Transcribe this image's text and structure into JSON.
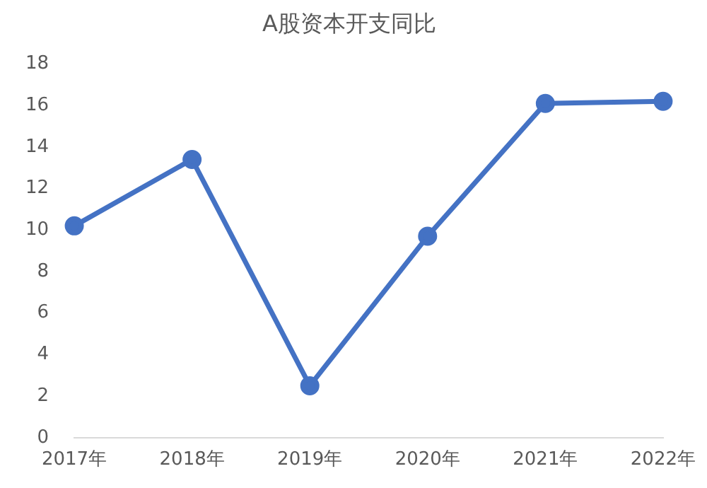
{
  "chart_data": {
    "type": "line",
    "title": "A股资本开支同比",
    "categories": [
      "2017年",
      "2018年",
      "2019年",
      "2020年",
      "2021年",
      "2022年"
    ],
    "series": [
      {
        "color": "#4472c4",
        "values": [
          10.2,
          13.4,
          2.5,
          9.7,
          16.1,
          16.2
        ]
      }
    ],
    "ylim": [
      0,
      18
    ],
    "yticks": [
      0,
      2,
      4,
      6,
      8,
      10,
      12,
      14,
      16,
      18
    ],
    "grid": false,
    "legend": false,
    "marker": "circle",
    "line_style": "solid"
  }
}
